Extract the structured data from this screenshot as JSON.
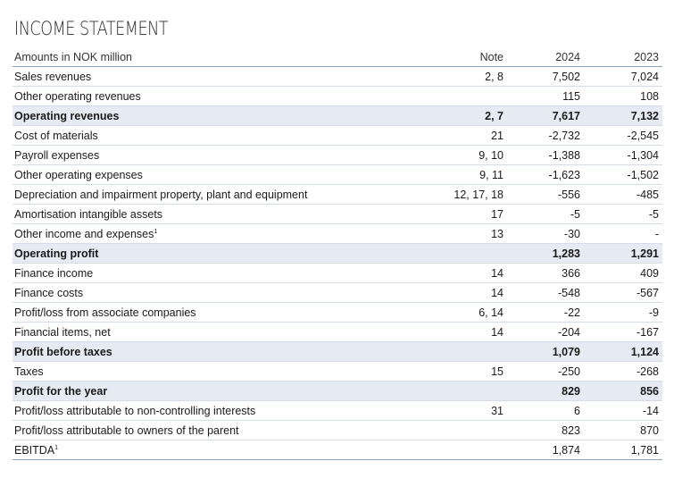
{
  "title": "INCOME STATEMENT",
  "header": {
    "label": "Amounts in NOK million",
    "note": "Note",
    "y2024": "2024",
    "y2023": "2023"
  },
  "rows": [
    {
      "label": "Sales revenues",
      "sup": "",
      "note": "2, 8",
      "y2024": "7,502",
      "y2023": "7,024",
      "shaded": false
    },
    {
      "label": "Other operating revenues",
      "sup": "",
      "note": "",
      "y2024": "115",
      "y2023": "108",
      "shaded": false
    },
    {
      "label": "Operating revenues",
      "sup": "",
      "note": "2, 7",
      "y2024": "7,617",
      "y2023": "7,132",
      "shaded": true
    },
    {
      "label": "Cost of materials",
      "sup": "",
      "note": "21",
      "y2024": "-2,732",
      "y2023": "-2,545",
      "shaded": false
    },
    {
      "label": "Payroll expenses",
      "sup": "",
      "note": "9, 10",
      "y2024": "-1,388",
      "y2023": "-1,304",
      "shaded": false
    },
    {
      "label": "Other operating expenses",
      "sup": "",
      "note": "9, 11",
      "y2024": "-1,623",
      "y2023": "-1,502",
      "shaded": false
    },
    {
      "label": "Depreciation and impairment property, plant and equipment",
      "sup": "",
      "note": "12, 17, 18",
      "y2024": "-556",
      "y2023": "-485",
      "shaded": false
    },
    {
      "label": "Amortisation intangible assets",
      "sup": "",
      "note": "17",
      "y2024": "-5",
      "y2023": "-5",
      "shaded": false
    },
    {
      "label": "Other income and expenses",
      "sup": "1",
      "note": "13",
      "y2024": "-30",
      "y2023": "-",
      "shaded": false
    },
    {
      "label": "Operating profit",
      "sup": "",
      "note": "",
      "y2024": "1,283",
      "y2023": "1,291",
      "shaded": true
    },
    {
      "label": "Finance income",
      "sup": "",
      "note": "14",
      "y2024": "366",
      "y2023": "409",
      "shaded": false
    },
    {
      "label": "Finance costs",
      "sup": "",
      "note": "14",
      "y2024": "-548",
      "y2023": "-567",
      "shaded": false
    },
    {
      "label": "Profit/loss from associate companies",
      "sup": "",
      "note": "6, 14",
      "y2024": "-22",
      "y2023": "-9",
      "shaded": false
    },
    {
      "label": "Financial items, net",
      "sup": "",
      "note": "14",
      "y2024": "-204",
      "y2023": "-167",
      "shaded": false
    },
    {
      "label": "Profit before taxes",
      "sup": "",
      "note": "",
      "y2024": "1,079",
      "y2023": "1,124",
      "shaded": true
    },
    {
      "label": "Taxes",
      "sup": "",
      "note": "15",
      "y2024": "-250",
      "y2023": "-268",
      "shaded": false
    },
    {
      "label": "Profit for the year",
      "sup": "",
      "note": "",
      "y2024": "829",
      "y2023": "856",
      "shaded": true
    },
    {
      "label": "Profit/loss attributable to non-controlling interests",
      "sup": "",
      "note": "31",
      "y2024": "6",
      "y2023": "-14",
      "shaded": false
    },
    {
      "label": "Profit/loss attributable to owners of the parent",
      "sup": "",
      "note": "",
      "y2024": "823",
      "y2023": "870",
      "shaded": false
    },
    {
      "label": "EBITDA",
      "sup": "1",
      "note": "",
      "y2024": "1,874",
      "y2023": "1,781",
      "shaded": false
    }
  ]
}
